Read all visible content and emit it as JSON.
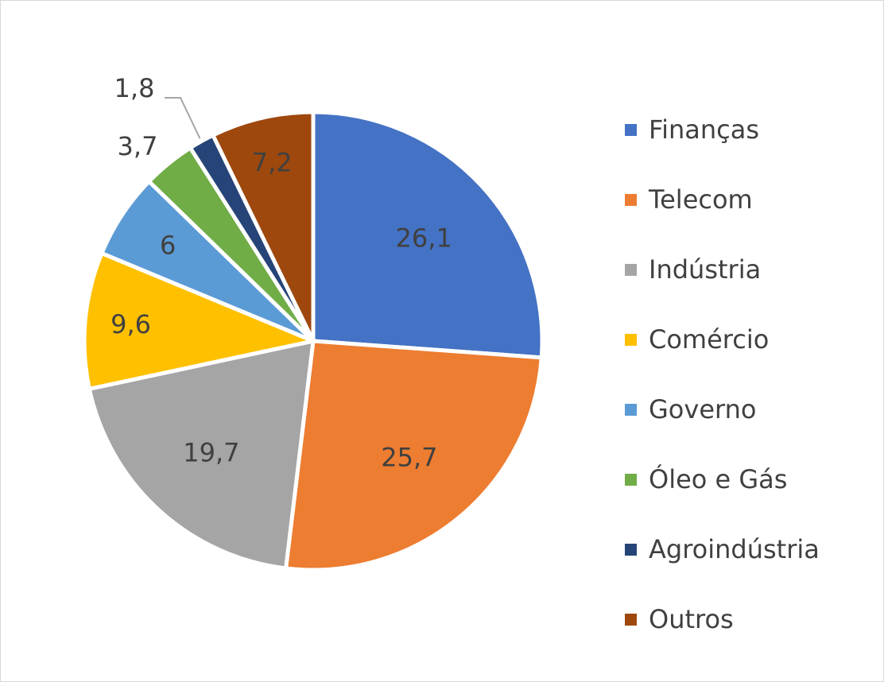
{
  "chart_data": {
    "type": "pie",
    "title": "",
    "start_angle_deg": 0,
    "direction": "clockwise",
    "categories": [
      "Finanças",
      "Telecom",
      "Indústria",
      "Comércio",
      "Governo",
      "Óleo e Gás",
      "Agroindústria",
      "Outros"
    ],
    "values": [
      26.1,
      25.7,
      19.7,
      9.6,
      6,
      3.7,
      1.8,
      7.2
    ],
    "data_labels": [
      "26,1",
      "25,7",
      "19,7",
      "9,6",
      "6",
      "3,7",
      "1,8",
      "7,2"
    ],
    "colors": [
      "#4472C4",
      "#ED7D31",
      "#A5A5A5",
      "#FFC000",
      "#5B9BD5",
      "#70AD47",
      "#264478",
      "#9E480E"
    ],
    "legend_position": "right"
  }
}
